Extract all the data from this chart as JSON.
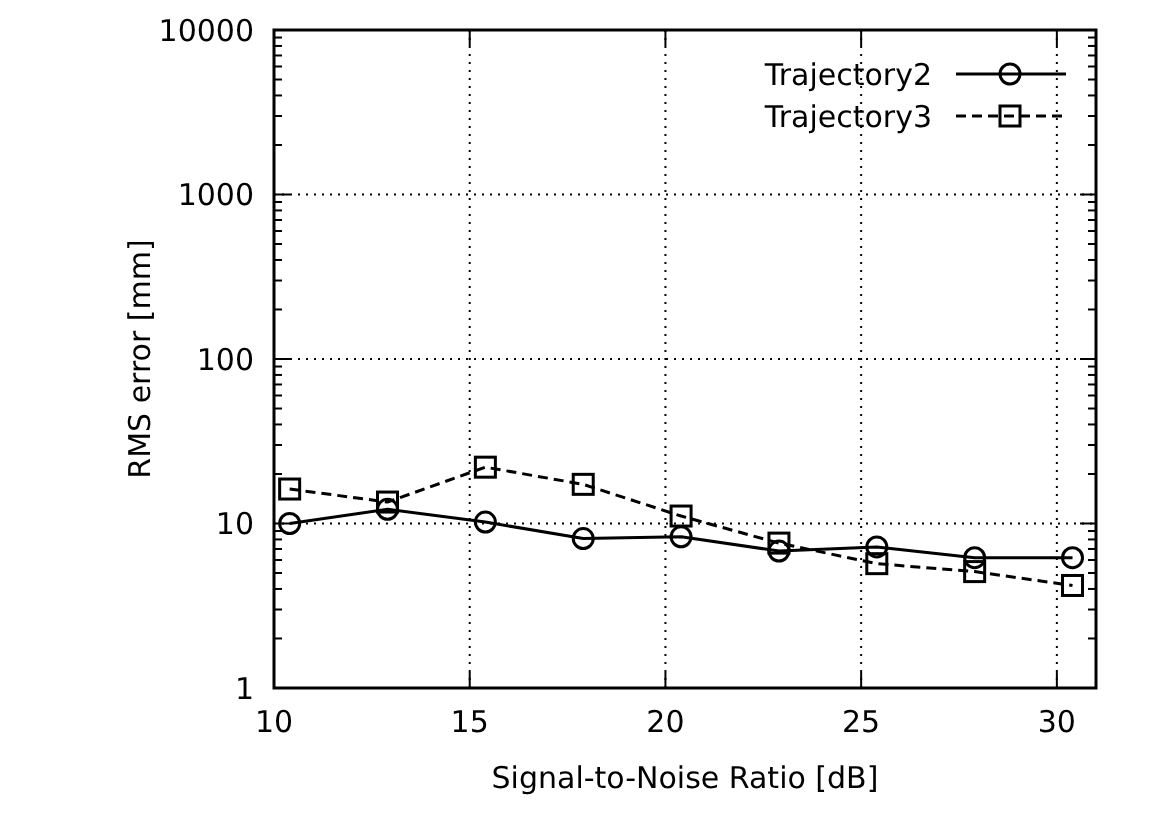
{
  "chart_data": {
    "type": "line",
    "xlabel": "Signal-to-Noise Ratio [dB]",
    "ylabel": "RMS error [mm]",
    "xlim": [
      10,
      31
    ],
    "xticks": [
      10,
      15,
      20,
      25,
      30
    ],
    "ylim": [
      1,
      10000
    ],
    "yticks": [
      1,
      10,
      100,
      1000,
      10000
    ],
    "log": "y",
    "grid": true,
    "legend": "top right",
    "series": [
      {
        "name": "Trajectory2",
        "color": "#000000",
        "marker": "circle",
        "line_style": "solid",
        "x": [
          10.4,
          12.9,
          15.4,
          17.9,
          20.4,
          22.9,
          25.4,
          27.9,
          30.4
        ],
        "values": [
          10,
          12.2,
          10.2,
          8.1,
          8.3,
          6.8,
          7.2,
          6.2,
          6.2
        ]
      },
      {
        "name": "Trajectory3",
        "color": "#000000",
        "marker": "square",
        "line_style": "dashed",
        "x": [
          10.4,
          12.9,
          15.4,
          17.9,
          20.4,
          22.9,
          25.4,
          27.9,
          30.4
        ],
        "values": [
          16.2,
          13.5,
          22,
          17.3,
          11.1,
          7.6,
          5.7,
          5.1,
          4.2
        ]
      }
    ]
  }
}
